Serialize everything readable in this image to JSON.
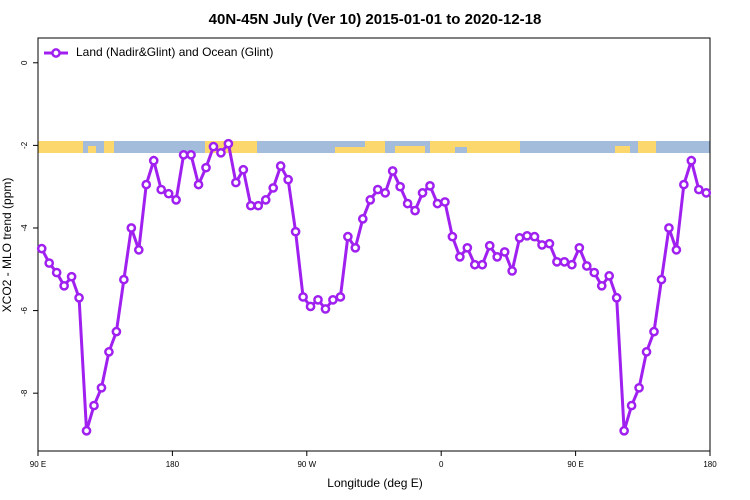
{
  "chart_data": {
    "type": "line",
    "title": "40N-45N July (Ver 10)   2015-01-01 to 2020-12-18",
    "x_label": "Longitude (deg E)",
    "y_label": "XCO2 - MLO trend (ppm)",
    "x": [
      92.5,
      97.5,
      102.5,
      107.5,
      112.5,
      117.5,
      122.5,
      127.5,
      132.5,
      137.5,
      142.5,
      147.5,
      152.5,
      157.5,
      162.5,
      167.5,
      172.5,
      177.5,
      182.5,
      187.5,
      192.5,
      197.5,
      202.5,
      207.5,
      212.5,
      217.5,
      222.5,
      227.5,
      232.5,
      237.5,
      242.5,
      247.5,
      252.5,
      257.5,
      262.5,
      267.5,
      272.5,
      277.5,
      282.5,
      287.5,
      292.5,
      297.5,
      302.5,
      307.5,
      312.5,
      317.5,
      322.5,
      327.5,
      332.5,
      337.5,
      342.5,
      347.5,
      352.5,
      357.5,
      362.5,
      367.5,
      372.5,
      377.5,
      382.5,
      387.5,
      392.5,
      397.5,
      402.5,
      407.5,
      412.5,
      417.5,
      422.5,
      427.5,
      432.5,
      437.5,
      442.5,
      447.5,
      452.5,
      457.5,
      462.5,
      467.5,
      472.5,
      477.5,
      482.5,
      487.5,
      492.5,
      497.5,
      502.5,
      507.5,
      512.5,
      517.5,
      522.5,
      527.5,
      532.5,
      537.5
    ],
    "series": [
      {
        "name": "Land (Nadir&Glint) and Ocean (Glint)",
        "color": "#a020f0",
        "values": [
          -4.5,
          -4.85,
          -5.08,
          -5.4,
          -5.18,
          -5.69,
          -8.91,
          -8.3,
          -7.87,
          -7.0,
          -6.51,
          -5.25,
          -4.0,
          -4.53,
          -2.95,
          -2.37,
          -3.07,
          -3.17,
          -3.32,
          -2.23,
          -2.23,
          -2.95,
          -2.54,
          -2.03,
          -2.18,
          -1.96,
          -2.9,
          -2.59,
          -3.46,
          -3.46,
          -3.32,
          -3.03,
          -2.5,
          -2.83,
          -4.09,
          -5.67,
          -5.9,
          -5.74,
          -5.96,
          -5.74,
          -5.67,
          -4.21,
          -4.48,
          -3.78,
          -3.32,
          -3.07,
          -3.15,
          -2.62,
          -3.0,
          -3.41,
          -3.58,
          -3.15,
          -2.98,
          -3.41,
          -3.37,
          -4.21,
          -4.7,
          -4.48,
          -4.89,
          -4.89,
          -4.43,
          -4.7,
          -4.58,
          -5.04,
          -4.24,
          -4.19,
          -4.21,
          -4.41,
          -4.38,
          -4.82,
          -4.82,
          -4.89,
          -4.48,
          -4.92,
          -5.08,
          -5.4,
          -5.16,
          -5.69,
          -8.91,
          -8.3,
          -7.87,
          -7.0,
          -6.51,
          -5.25,
          -4.0,
          -4.53,
          -2.95,
          -2.37,
          -3.07,
          -3.15
        ]
      }
    ],
    "xlim": [
      90,
      540
    ],
    "xticks": [
      {
        "value": 90,
        "label": "90 E"
      },
      180,
      {
        "value": 270,
        "label": "90 W"
      },
      {
        "value": 360,
        "label": "0"
      },
      {
        "value": 450,
        "label": "90 E"
      },
      {
        "value": 540,
        "label": "180"
      }
    ],
    "ylim": [
      -9.4,
      0.6
    ],
    "yticks": [
      0,
      -2,
      -4,
      -6,
      -8
    ],
    "legend": "top-left"
  }
}
